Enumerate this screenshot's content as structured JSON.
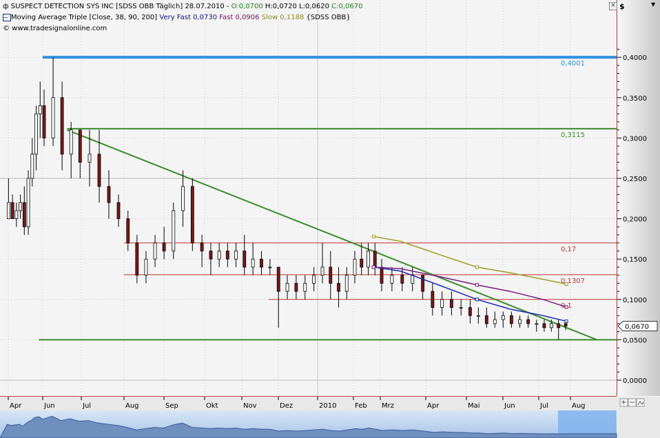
{
  "header": {
    "line1_prefix": "SUSPECT DETECTION SYS INC [SDSS OBB  Täglich] 28.07.2010 - ",
    "open": "O:0,0700",
    "high": "H:0,0720",
    "low": "L:0,0620",
    "close": "C:0,0670",
    "indicator": "Moving Average Triple [Close, 38, 90, 200]",
    "very_fast": "Very Fast 0,0730",
    "fast": "Fast 0,0906",
    "slow": "Slow 0,1188",
    "indicator_suffix": "{SDSS OBB}",
    "copyright": "© www.tradesignalonline.com",
    "currency": "$"
  },
  "colors": {
    "up_candle": "#ffffff",
    "down_candle": "#7a1818",
    "very_fast": "#1a28b0",
    "fast": "#7a1a80",
    "slow": "#a09a20",
    "resistance_blue": "#3090e0",
    "green_lines": "#3a8a2a",
    "red_lines": "#c03030",
    "navigator": "#6f8fbf"
  },
  "chart_data": {
    "type": "candlestick",
    "ylim": [
      0,
      0.42
    ],
    "yticks": [
      "0,0000",
      "0,0500",
      "0,1000",
      "0,1500",
      "0,2000",
      "0,2500",
      "0,3000",
      "0,3500",
      "0,4000"
    ],
    "ytick_values": [
      0,
      0.05,
      0.1,
      0.15,
      0.2,
      0.25,
      0.3,
      0.35,
      0.4
    ],
    "xticks": [
      "Apr",
      "Jun",
      "Jul",
      "Aug",
      "Sep",
      "Okt",
      "Nov",
      "Dez",
      "2010",
      "Feb",
      "Mrz",
      "Apr",
      "Mai",
      "Jun",
      "Jul",
      "Aug"
    ],
    "xtick_dates": [
      "2009-04-01",
      "2009-06-01",
      "2009-07-01",
      "2009-08-01",
      "2009-09-01",
      "2009-10-01",
      "2009-11-01",
      "2009-12-01",
      "2010-01-01",
      "2010-02-01",
      "2010-03-01",
      "2010-04-01",
      "2010-05-01",
      "2010-06-01",
      "2010-07-01",
      "2010-08-01"
    ],
    "candles": [
      [
        "2009-03-30",
        0.2,
        0.25,
        0.2,
        0.22
      ],
      [
        "2009-04-06",
        0.22,
        0.23,
        0.2,
        0.2
      ],
      [
        "2009-04-13",
        0.2,
        0.22,
        0.19,
        0.21
      ],
      [
        "2009-04-20",
        0.21,
        0.23,
        0.2,
        0.22
      ],
      [
        "2009-04-27",
        0.22,
        0.24,
        0.18,
        0.19
      ],
      [
        "2009-05-04",
        0.19,
        0.26,
        0.18,
        0.25
      ],
      [
        "2009-05-11",
        0.25,
        0.3,
        0.24,
        0.28
      ],
      [
        "2009-05-18",
        0.28,
        0.34,
        0.26,
        0.33
      ],
      [
        "2009-05-25",
        0.33,
        0.37,
        0.3,
        0.34
      ],
      [
        "2009-06-01",
        0.34,
        0.36,
        0.29,
        0.3
      ],
      [
        "2009-06-08",
        0.3,
        0.4,
        0.29,
        0.35
      ],
      [
        "2009-06-15",
        0.35,
        0.37,
        0.26,
        0.28
      ],
      [
        "2009-06-22",
        0.28,
        0.32,
        0.25,
        0.31
      ],
      [
        "2009-06-29",
        0.31,
        0.31,
        0.25,
        0.27
      ],
      [
        "2009-07-06",
        0.27,
        0.31,
        0.24,
        0.28
      ],
      [
        "2009-07-13",
        0.28,
        0.31,
        0.22,
        0.24
      ],
      [
        "2009-07-20",
        0.24,
        0.26,
        0.2,
        0.22
      ],
      [
        "2009-07-27",
        0.22,
        0.23,
        0.19,
        0.2
      ],
      [
        "2009-08-03",
        0.2,
        0.21,
        0.16,
        0.17
      ],
      [
        "2009-08-10",
        0.17,
        0.18,
        0.12,
        0.13
      ],
      [
        "2009-08-17",
        0.13,
        0.16,
        0.12,
        0.15
      ],
      [
        "2009-08-24",
        0.15,
        0.18,
        0.14,
        0.17
      ],
      [
        "2009-08-31",
        0.17,
        0.19,
        0.15,
        0.16
      ],
      [
        "2009-09-07",
        0.16,
        0.22,
        0.15,
        0.21
      ],
      [
        "2009-09-14",
        0.21,
        0.26,
        0.19,
        0.24
      ],
      [
        "2009-09-21",
        0.24,
        0.25,
        0.16,
        0.17
      ],
      [
        "2009-09-28",
        0.17,
        0.18,
        0.14,
        0.16
      ],
      [
        "2009-10-05",
        0.16,
        0.17,
        0.13,
        0.15
      ],
      [
        "2009-10-12",
        0.15,
        0.17,
        0.14,
        0.16
      ],
      [
        "2009-10-19",
        0.16,
        0.17,
        0.14,
        0.15
      ],
      [
        "2009-10-26",
        0.15,
        0.17,
        0.14,
        0.16
      ],
      [
        "2009-11-02",
        0.16,
        0.18,
        0.13,
        0.14
      ],
      [
        "2009-11-09",
        0.14,
        0.17,
        0.13,
        0.15
      ],
      [
        "2009-11-16",
        0.15,
        0.16,
        0.13,
        0.14
      ],
      [
        "2009-11-23",
        0.14,
        0.15,
        0.13,
        0.14
      ],
      [
        "2009-11-30",
        0.14,
        0.14,
        0.065,
        0.11
      ],
      [
        "2009-12-07",
        0.11,
        0.13,
        0.1,
        0.12
      ],
      [
        "2009-12-14",
        0.12,
        0.13,
        0.1,
        0.11
      ],
      [
        "2009-12-21",
        0.11,
        0.13,
        0.1,
        0.12
      ],
      [
        "2009-12-28",
        0.12,
        0.14,
        0.11,
        0.13
      ],
      [
        "2010-01-04",
        0.13,
        0.17,
        0.12,
        0.14
      ],
      [
        "2010-01-11",
        0.14,
        0.16,
        0.1,
        0.12
      ],
      [
        "2010-01-18",
        0.12,
        0.14,
        0.09,
        0.11
      ],
      [
        "2010-01-25",
        0.11,
        0.14,
        0.1,
        0.13
      ],
      [
        "2010-02-01",
        0.13,
        0.16,
        0.12,
        0.15
      ],
      [
        "2010-02-08",
        0.15,
        0.17,
        0.13,
        0.14
      ],
      [
        "2010-02-15",
        0.14,
        0.17,
        0.13,
        0.16
      ],
      [
        "2010-02-22",
        0.16,
        0.17,
        0.13,
        0.14
      ],
      [
        "2010-03-01",
        0.14,
        0.15,
        0.11,
        0.12
      ],
      [
        "2010-03-08",
        0.12,
        0.14,
        0.11,
        0.13
      ],
      [
        "2010-03-15",
        0.13,
        0.14,
        0.11,
        0.12
      ],
      [
        "2010-03-22",
        0.12,
        0.14,
        0.11,
        0.13
      ],
      [
        "2010-03-29",
        0.13,
        0.13,
        0.1,
        0.11
      ],
      [
        "2010-04-05",
        0.11,
        0.12,
        0.08,
        0.09
      ],
      [
        "2010-04-12",
        0.09,
        0.11,
        0.08,
        0.1
      ],
      [
        "2010-04-19",
        0.1,
        0.11,
        0.08,
        0.09
      ],
      [
        "2010-04-26",
        0.09,
        0.1,
        0.08,
        0.09
      ],
      [
        "2010-05-03",
        0.09,
        0.1,
        0.07,
        0.08
      ],
      [
        "2010-05-10",
        0.08,
        0.09,
        0.07,
        0.08
      ],
      [
        "2010-05-17",
        0.08,
        0.09,
        0.065,
        0.07
      ],
      [
        "2010-05-24",
        0.07,
        0.085,
        0.065,
        0.075
      ],
      [
        "2010-05-31",
        0.075,
        0.085,
        0.065,
        0.08
      ],
      [
        "2010-06-07",
        0.08,
        0.085,
        0.065,
        0.07
      ],
      [
        "2010-06-14",
        0.07,
        0.08,
        0.065,
        0.075
      ],
      [
        "2010-06-21",
        0.075,
        0.08,
        0.065,
        0.07
      ],
      [
        "2010-06-28",
        0.07,
        0.075,
        0.06,
        0.07
      ],
      [
        "2010-07-05",
        0.07,
        0.075,
        0.06,
        0.065
      ],
      [
        "2010-07-12",
        0.065,
        0.075,
        0.06,
        0.07
      ],
      [
        "2010-07-19",
        0.07,
        0.075,
        0.05,
        0.065
      ],
      [
        "2010-07-26",
        0.07,
        0.072,
        0.062,
        0.067
      ]
    ],
    "moving_averages": [
      {
        "name": "Very Fast",
        "color_key": "very_fast",
        "points": [
          [
            "2010-02-22",
            0.14
          ],
          [
            "2010-03-15",
            0.135
          ],
          [
            "2010-04-12",
            0.117
          ],
          [
            "2010-05-10",
            0.1
          ],
          [
            "2010-06-07",
            0.088
          ],
          [
            "2010-07-05",
            0.08
          ],
          [
            "2010-07-28",
            0.073
          ]
        ]
      },
      {
        "name": "Fast",
        "color_key": "fast",
        "points": [
          [
            "2010-02-22",
            0.14
          ],
          [
            "2010-03-15",
            0.138
          ],
          [
            "2010-04-12",
            0.128
          ],
          [
            "2010-05-10",
            0.118
          ],
          [
            "2010-06-07",
            0.11
          ],
          [
            "2010-07-05",
            0.1
          ],
          [
            "2010-07-28",
            0.0906
          ]
        ]
      },
      {
        "name": "Slow",
        "color_key": "slow",
        "points": [
          [
            "2010-02-22",
            0.178
          ],
          [
            "2010-03-15",
            0.172
          ],
          [
            "2010-04-12",
            0.155
          ],
          [
            "2010-05-10",
            0.14
          ],
          [
            "2010-06-07",
            0.133
          ],
          [
            "2010-07-05",
            0.125
          ],
          [
            "2010-07-28",
            0.119
          ]
        ]
      }
    ],
    "horizontal_lines": [
      {
        "value": 0.4001,
        "label": "0,4001",
        "from": "2009-06-01",
        "color_key": "resistance_blue",
        "thick": true
      },
      {
        "value": 0.3115,
        "label": "0,3115",
        "from": "2009-06-20",
        "color_key": "green_lines"
      },
      {
        "value": 0.17,
        "label": "0,17",
        "from": "2009-08-01",
        "color_key": "red_lines"
      },
      {
        "value": 0.1307,
        "label": "0,1307",
        "from": "2009-08-01",
        "color_key": "red_lines"
      },
      {
        "value": 0.1,
        "label": "0,1",
        "from": "2009-11-23",
        "color_key": "red_lines"
      },
      {
        "value": 0.05,
        "label": "",
        "from": "2009-05-25",
        "color_key": "green_lines"
      }
    ],
    "trendline": {
      "from": [
        "2009-06-20",
        0.31
      ],
      "to": [
        "2010-08-27",
        0.05
      ],
      "color_key": "green_lines"
    },
    "last_price": {
      "value": 0.067,
      "label": "0,0670"
    }
  }
}
